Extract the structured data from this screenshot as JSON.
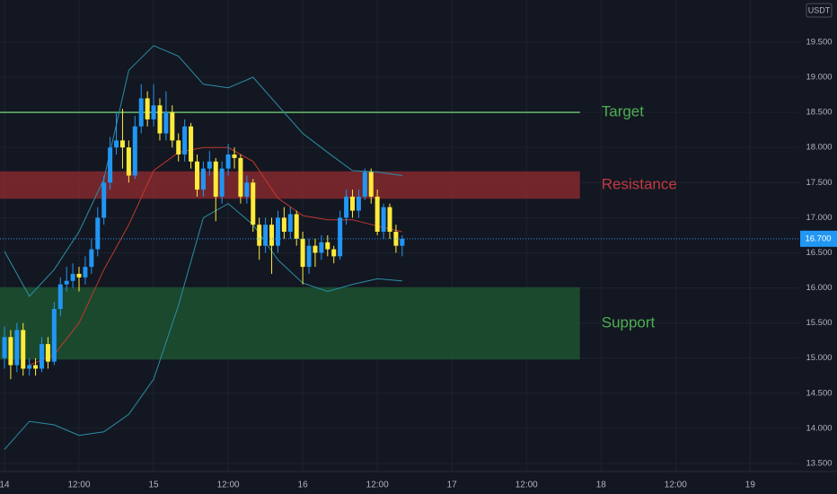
{
  "chart_data": {
    "type": "candlestick",
    "unit": "USDT",
    "x": [
      0,
      1,
      2,
      3,
      4,
      5,
      6,
      7,
      8,
      9,
      10,
      11,
      12,
      13,
      14,
      15,
      16,
      17,
      18,
      19,
      20,
      21,
      22,
      23,
      24,
      25,
      26,
      27,
      28,
      29,
      30,
      31,
      32,
      33,
      34,
      35,
      36,
      37,
      38,
      39,
      40,
      41,
      42,
      43,
      44,
      45,
      46,
      47,
      48,
      49,
      50,
      51,
      52,
      53,
      54,
      55,
      56,
      57,
      58,
      59,
      60,
      61,
      62,
      63,
      64
    ],
    "open": [
      15.0,
      15.3,
      14.9,
      15.4,
      14.85,
      14.9,
      14.85,
      15.2,
      14.95,
      15.7,
      16.05,
      16.1,
      16.2,
      16.15,
      16.3,
      16.55,
      17.0,
      17.5,
      18.0,
      18.1,
      18.0,
      17.6,
      18.3,
      18.7,
      18.4,
      18.6,
      18.2,
      18.5,
      18.1,
      17.9,
      18.3,
      17.8,
      17.4,
      17.7,
      17.8,
      17.3,
      17.7,
      17.9,
      17.85,
      17.3,
      17.5,
      16.9,
      16.6,
      16.9,
      16.6,
      17.0,
      16.8,
      17.05,
      16.7,
      16.3,
      16.6,
      16.5,
      16.65,
      16.55,
      16.45,
      17.0,
      17.3,
      17.1,
      17.3,
      17.65,
      17.3,
      16.8,
      17.15,
      16.8,
      16.6
    ],
    "high": [
      15.45,
      15.4,
      15.5,
      15.5,
      15.0,
      15.0,
      15.3,
      15.3,
      15.8,
      16.15,
      16.3,
      16.35,
      16.3,
      16.45,
      16.7,
      17.15,
      17.6,
      18.15,
      18.5,
      18.55,
      18.1,
      18.45,
      18.9,
      18.8,
      18.9,
      18.7,
      18.8,
      18.6,
      18.2,
      18.4,
      18.35,
      17.9,
      17.8,
      17.95,
      17.85,
      17.8,
      18.05,
      18.0,
      17.9,
      17.6,
      17.55,
      17.0,
      17.0,
      17.0,
      17.1,
      17.15,
      17.15,
      17.1,
      16.8,
      16.7,
      16.7,
      16.75,
      16.75,
      16.6,
      17.1,
      17.4,
      17.4,
      17.4,
      17.7,
      17.7,
      17.4,
      17.2,
      17.2,
      16.9,
      16.75
    ],
    "low": [
      14.85,
      14.7,
      14.8,
      14.75,
      14.75,
      14.75,
      14.8,
      14.85,
      14.9,
      15.6,
      15.95,
      16.0,
      15.95,
      16.05,
      16.2,
      16.45,
      16.9,
      17.4,
      17.9,
      17.7,
      17.5,
      17.55,
      18.2,
      18.3,
      18.3,
      18.1,
      18.1,
      18.0,
      17.8,
      17.8,
      17.7,
      17.3,
      17.3,
      17.6,
      16.95,
      17.2,
      17.6,
      17.7,
      17.2,
      17.2,
      16.8,
      16.4,
      16.5,
      16.2,
      16.5,
      16.7,
      16.7,
      16.6,
      16.05,
      16.2,
      16.3,
      16.4,
      16.45,
      16.35,
      16.4,
      16.9,
      17.0,
      17.0,
      17.25,
      17.2,
      16.75,
      16.7,
      16.7,
      16.5,
      16.45
    ],
    "close": [
      15.3,
      14.9,
      15.4,
      14.85,
      14.9,
      14.85,
      15.2,
      14.95,
      15.7,
      16.05,
      16.1,
      16.2,
      16.15,
      16.3,
      16.55,
      17.0,
      17.5,
      18.0,
      18.1,
      18.0,
      17.6,
      18.3,
      18.7,
      18.4,
      18.6,
      18.2,
      18.5,
      18.1,
      17.9,
      18.3,
      17.8,
      17.4,
      17.7,
      17.8,
      17.3,
      17.7,
      17.9,
      17.85,
      17.3,
      17.5,
      16.9,
      16.6,
      16.9,
      16.6,
      17.0,
      16.8,
      17.05,
      16.7,
      16.3,
      16.6,
      16.5,
      16.65,
      16.55,
      16.45,
      17.0,
      17.3,
      17.1,
      17.3,
      17.65,
      17.3,
      16.8,
      17.15,
      16.8,
      16.6,
      16.7
    ],
    "up_color": "#2196f3",
    "down_color": "#ffeb3b",
    "indicators": [
      {
        "x": [
          0,
          4,
          8,
          12,
          16,
          20,
          24,
          28,
          32,
          36,
          40,
          44,
          48,
          52,
          56,
          60,
          64
        ],
        "values": [
          16.52,
          15.88,
          16.26,
          16.8,
          17.55,
          19.1,
          19.45,
          19.3,
          18.9,
          18.85,
          19.0,
          18.6,
          18.2,
          17.93,
          17.67,
          17.65,
          17.6
        ],
        "color": "#2a8fa6"
      },
      {
        "x": [
          0,
          4,
          8,
          12,
          16,
          20,
          24,
          28,
          32,
          36,
          40,
          44,
          48,
          52,
          56,
          60,
          64
        ],
        "values": [
          13.7,
          14.1,
          14.05,
          13.9,
          13.95,
          14.2,
          14.7,
          15.75,
          17.0,
          17.2,
          16.9,
          16.4,
          16.07,
          15.95,
          16.05,
          16.13,
          16.1
        ],
        "color": "#2a8fa6"
      },
      {
        "x": [
          0,
          4,
          8,
          12,
          16,
          20,
          24,
          28,
          32,
          36,
          40,
          44,
          48,
          52,
          56,
          60,
          64
        ],
        "values": [
          null,
          14.9,
          15.05,
          15.5,
          16.26,
          16.9,
          17.67,
          17.93,
          18.0,
          18.0,
          17.8,
          17.28,
          17.03,
          16.97,
          16.97,
          16.88,
          16.8
        ],
        "color": "#c0392b"
      }
    ],
    "zones": [
      {
        "label": "Target",
        "value": 18.5,
        "end_x": 92.6,
        "color": "#66bb6a",
        "label_color": "#4caf50"
      },
      {
        "label": "Resistance",
        "from": 17.27,
        "to": 17.66,
        "end_x": 92.6,
        "color": "#8b2a30",
        "label_color": "#c2393f"
      },
      {
        "label": "Support",
        "from": 14.98,
        "to": 16.01,
        "end_x": 92.6,
        "color": "#1e5631",
        "label_color": "#4caf50"
      }
    ],
    "last_price": {
      "value": 16.7,
      "label": "16.700"
    },
    "xlim": [
      -0.72,
      127.9
    ],
    "xticks": [
      {
        "value": 0,
        "label": "14"
      },
      {
        "value": 12,
        "label": "12:00"
      },
      {
        "value": 24,
        "label": "15"
      },
      {
        "value": 36,
        "label": "12:00"
      },
      {
        "value": 48,
        "label": "16"
      },
      {
        "value": 60,
        "label": "12:00"
      },
      {
        "value": 72,
        "label": "17"
      },
      {
        "value": 84,
        "label": "12:00"
      },
      {
        "value": 96,
        "label": "18"
      },
      {
        "value": 108,
        "label": "12:00"
      },
      {
        "value": 120,
        "label": "19"
      }
    ],
    "ylim": [
      13.385,
      20.1
    ],
    "yticks": [
      {
        "value": 13.5,
        "label": "13.500"
      },
      {
        "value": 14,
        "label": "14.000"
      },
      {
        "value": 14.5,
        "label": "14.500"
      },
      {
        "value": 15,
        "label": "15.000"
      },
      {
        "value": 15.5,
        "label": "15.500"
      },
      {
        "value": 16,
        "label": "16.000"
      },
      {
        "value": 16.5,
        "label": "16.500"
      },
      {
        "value": 17,
        "label": "17.000"
      },
      {
        "value": 17.5,
        "label": "17.500"
      },
      {
        "value": 18,
        "label": "18.000"
      },
      {
        "value": 18.5,
        "label": "18.500"
      },
      {
        "value": 19,
        "label": "19.000"
      },
      {
        "value": 19.5,
        "label": "19.500"
      }
    ],
    "grid": true
  }
}
